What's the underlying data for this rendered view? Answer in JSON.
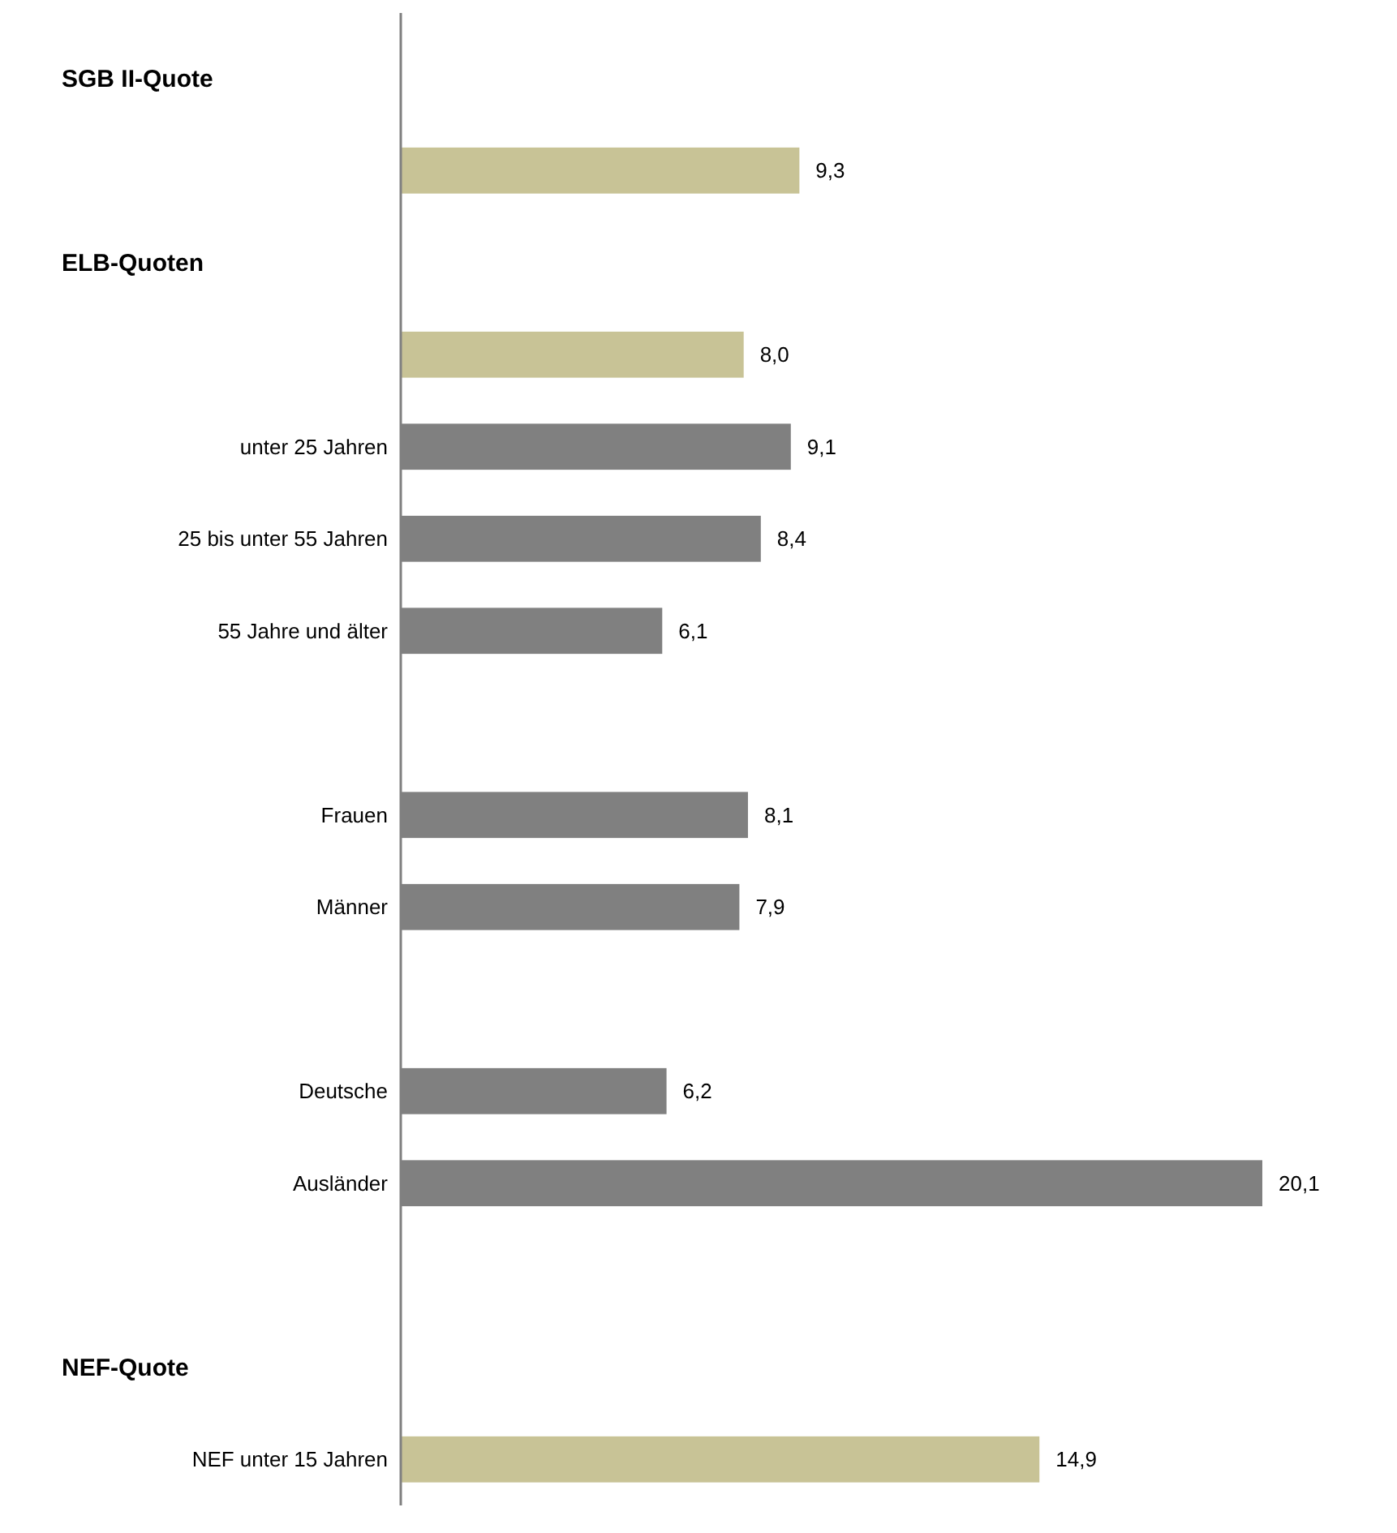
{
  "chart_data": {
    "type": "bar",
    "orientation": "horizontal",
    "data_labels": true,
    "annotations": [
      "SGB II-Quote",
      "ELB-Quoten",
      "NEF-Quote"
    ],
    "categories": [
      null,
      null,
      null,
      null,
      "unter 25 Jahren",
      "25 bis unter 55 Jahren",
      "55 Jahre und älter",
      null,
      "Frauen",
      "Männer",
      null,
      "Deutsche",
      "Ausländer",
      null,
      null,
      "NEF unter 15 Jahren"
    ],
    "values": [
      null,
      9.3,
      null,
      8.0,
      9.1,
      8.4,
      6.1,
      null,
      8.1,
      7.9,
      null,
      6.2,
      20.1,
      null,
      null,
      14.9
    ],
    "value_labels": [
      null,
      "9,3",
      null,
      "8,0",
      "9,1",
      "8,4",
      "6,1",
      null,
      "8,1",
      "7,9",
      null,
      "6,2",
      "20,1",
      null,
      null,
      "14,9"
    ],
    "colors": [
      null,
      "#c8c396",
      null,
      "#c8c396",
      "#808080",
      "#808080",
      "#808080",
      null,
      "#808080",
      "#808080",
      null,
      "#808080",
      "#808080",
      null,
      null,
      "#c8c396"
    ]
  }
}
